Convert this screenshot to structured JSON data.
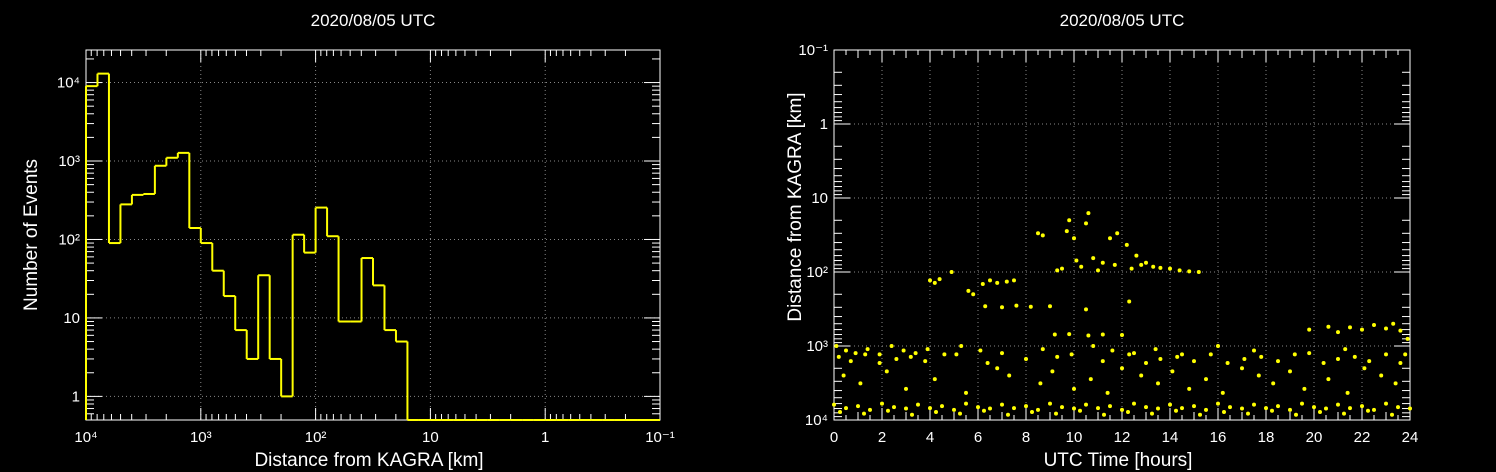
{
  "chart_data": [
    {
      "type": "histogram",
      "title": "2020/08/05 UTC",
      "xlabel": "Distance from KAGRA [km]",
      "ylabel": "Number of Events",
      "xlog": true,
      "ylog": true,
      "grid": true,
      "color": "#ffff00",
      "xlim": [
        10000,
        0.1
      ],
      "ylim": [
        0.5,
        26000
      ],
      "xticks": [
        {
          "value": 10000,
          "label": "10⁴"
        },
        {
          "value": 1000,
          "label": "10³"
        },
        {
          "value": 100,
          "label": "10²"
        },
        10,
        1,
        {
          "value": 0.1,
          "label": "10⁻¹"
        }
      ],
      "yticks": [
        1,
        10,
        {
          "value": 100,
          "label": "10²"
        },
        {
          "value": 1000,
          "label": "10³"
        },
        {
          "value": 10000,
          "label": "10⁴"
        }
      ],
      "bins": [
        10000,
        7943,
        6310,
        5012,
        3981,
        3162,
        2512,
        1995,
        1585,
        1259,
        1000,
        794.3,
        631.0,
        501.2,
        398.1,
        316.2,
        251.2,
        199.5,
        158.5,
        125.9,
        100,
        79.43,
        63.1,
        50.12,
        39.81,
        31.62,
        25.12,
        19.95,
        15.85,
        12.59,
        10,
        7.943,
        6.31,
        5.012,
        3.981,
        3.162,
        2.512,
        1.995,
        1.585,
        1.259,
        1,
        0.7943,
        0.631,
        0.5012,
        0.3981,
        0.3162,
        0.2512,
        0.1995,
        0.1585,
        0.1259,
        0.1
      ],
      "values": [
        9000,
        13000,
        90,
        280,
        370,
        380,
        870,
        1100,
        1270,
        140,
        90,
        40,
        19,
        7,
        3,
        35,
        3,
        1,
        115,
        68,
        255,
        110,
        9,
        9,
        58,
        26,
        7,
        5,
        0,
        0,
        0,
        0,
        0,
        0,
        0,
        0,
        0,
        0,
        0,
        0,
        0,
        0,
        0,
        0,
        0,
        0,
        0,
        0,
        0,
        0
      ]
    },
    {
      "type": "scatter",
      "title": "2020/08/05 UTC",
      "xlabel": "UTC Time [hours]",
      "ylabel": "Distance from KAGRA [km]",
      "xlog": false,
      "ylog": true,
      "grid": true,
      "color": "#ffff00",
      "xlim": [
        0,
        24
      ],
      "ylim": [
        10000,
        0.1
      ],
      "xticks": [
        0,
        2,
        4,
        6,
        8,
        10,
        12,
        14,
        16,
        18,
        20,
        22,
        24
      ],
      "yticks": [
        {
          "value": 10000,
          "label": "10⁴"
        },
        {
          "value": 1000,
          "label": "10³"
        },
        {
          "value": 100,
          "label": "10²"
        },
        10,
        1,
        {
          "value": 0.1,
          "label": "10⁻¹"
        }
      ],
      "x": [
        0,
        0.5,
        1,
        1.5,
        2,
        2.5,
        3,
        3.5,
        4,
        4.5,
        5,
        5.5,
        6,
        6.5,
        7,
        7.5,
        8,
        8.5,
        9,
        9.5,
        10,
        10.5,
        11,
        11.5,
        12,
        12.5,
        13,
        13.5,
        14,
        14.5,
        15,
        15.5,
        16,
        16.5,
        17,
        17.5,
        18,
        18.5,
        19,
        19.5,
        20,
        20.5,
        21,
        21.5,
        22,
        22.5,
        23,
        23.5,
        24,
        0.25,
        1.25,
        2.25,
        3.25,
        4.25,
        5.25,
        6.25,
        7.25,
        8.25,
        9.25,
        10.25,
        11.25,
        12.25,
        13.25,
        14.25,
        15.25,
        16.25,
        17.25,
        18.25,
        19.25,
        20.25,
        21.25,
        22.25,
        23.25,
        0.2,
        0.7,
        1.3,
        1.9,
        2.6,
        3.2,
        3.8,
        5.1,
        6.4,
        8.0,
        9.3,
        11.2,
        12.3,
        13.0,
        13.6,
        14.3,
        15.0,
        15.7,
        16.4,
        17.1,
        17.8,
        18.5,
        19.2,
        20.4,
        21.0,
        21.7,
        22.3,
        23.0,
        23.6,
        0.1,
        0.5,
        0.9,
        1.4,
        1.9,
        2.4,
        2.9,
        3.4,
        3.9,
        4.6,
        5.3,
        6.1,
        7.0,
        8.7,
        9.9,
        10.8,
        11.6,
        12.5,
        13.4,
        14.5,
        16.0,
        17.5,
        19.8,
        21.3,
        23.8,
        0.4,
        1.1,
        2.2,
        3.0,
        4.2,
        5.5,
        6.8,
        7.3,
        8.6,
        9.1,
        10.0,
        10.7,
        11.4,
        12.0,
        12.8,
        13.5,
        14.1,
        14.8,
        15.5,
        16.2,
        17.0,
        17.7,
        18.3,
        19.0,
        19.6,
        20.6,
        21.4,
        22.1,
        22.8,
        23.4,
        4.0,
        4.2,
        4.4,
        4.9,
        5.6,
        5.8,
        6.2,
        6.5,
        6.8,
        7.2,
        7.5,
        6.3,
        7.0,
        7.6,
        8.2,
        8.5,
        8.7,
        9.0,
        9.3,
        9.5,
        9.7,
        9.8,
        10.0,
        10.1,
        10.3,
        10.5,
        10.6,
        10.8,
        11.0,
        11.2,
        11.5,
        11.7,
        11.8,
        12.2,
        12.4,
        12.6,
        12.8,
        13.0,
        13.3,
        13.6,
        14.0,
        14.4,
        14.8,
        15.2,
        12.3,
        10.5,
        9.2,
        9.8,
        10.6,
        11.2,
        12.0,
        19.8,
        20.6,
        21.0,
        21.5,
        22.0,
        22.5,
        23.0,
        23.3,
        23.6,
        23.9
      ],
      "values": [
        6200,
        6900,
        6500,
        7300,
        6000,
        6700,
        7000,
        6200,
        6900,
        6500,
        7300,
        6000,
        6700,
        7000,
        6200,
        6900,
        6500,
        7300,
        6000,
        6700,
        7000,
        6200,
        6900,
        6500,
        7300,
        6000,
        6700,
        7000,
        6200,
        6900,
        6500,
        7300,
        6000,
        6700,
        7000,
        6200,
        6900,
        6500,
        7300,
        6000,
        6700,
        7000,
        6200,
        6900,
        6500,
        7300,
        6000,
        6700,
        7000,
        7800,
        8200,
        7500,
        8500,
        7800,
        8200,
        7500,
        8500,
        7800,
        8200,
        7500,
        8500,
        7800,
        8200,
        7500,
        8500,
        7800,
        8200,
        7500,
        8500,
        7800,
        8200,
        7500,
        8500,
        1400,
        1600,
        1300,
        1700,
        1500,
        1400,
        1600,
        1300,
        1700,
        1500,
        1400,
        1600,
        1300,
        1700,
        1500,
        1400,
        1600,
        1300,
        1700,
        1500,
        1400,
        1600,
        1300,
        1700,
        1500,
        1400,
        1600,
        1300,
        1700,
        1000,
        1150,
        1250,
        1100,
        1300,
        1000,
        1150,
        1250,
        1100,
        1300,
        1000,
        1150,
        1250,
        1100,
        1300,
        1000,
        1150,
        1250,
        1100,
        1300,
        1000,
        1150,
        1250,
        1100,
        1300,
        2500,
        3200,
        2200,
        3800,
        2800,
        4300,
        2000,
        2500,
        3200,
        2200,
        3800,
        2800,
        4300,
        2000,
        2500,
        3200,
        2200,
        3800,
        2800,
        4300,
        2000,
        2500,
        3200,
        2200,
        3800,
        2800,
        4300,
        2000,
        2500,
        3200,
        130,
        140,
        125,
        100,
        180,
        200,
        145,
        130,
        140,
        135,
        130,
        290,
        300,
        285,
        295,
        30,
        32,
        290,
        95,
        90,
        28,
        20,
        35,
        70,
        85,
        22,
        16,
        65,
        95,
        75,
        35,
        80,
        30,
        43,
        90,
        60,
        80,
        75,
        85,
        88,
        90,
        95,
        98,
        100,
        250,
        320,
        700,
        690,
        720,
        700,
        710,
        600,
        550,
        650,
        560,
        600,
        520,
        580,
        500,
        620,
        800
      ]
    }
  ]
}
